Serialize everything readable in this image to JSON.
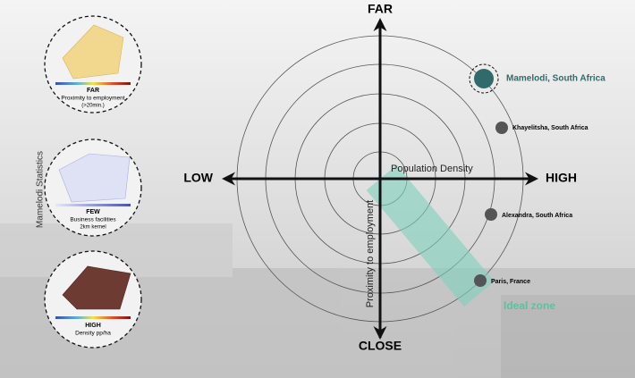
{
  "axes": {
    "top": "FAR",
    "bottom": "CLOSE",
    "left": "LOW",
    "right": "HIGH",
    "horizontal_label": "Population Density",
    "vertical_label": "Proximity to employment"
  },
  "places": [
    {
      "label": "Mamelodi, South Africa"
    },
    {
      "label": "Khayelitsha, South Africa"
    },
    {
      "label": "Alexandra, South Africa"
    },
    {
      "label": "Paris, France"
    }
  ],
  "ideal_zone": "Ideal zone",
  "sidebar": {
    "title": "Mamelodi Statistics",
    "panels": [
      {
        "level": "FAR",
        "caption": "Proximity to employment",
        "note": "(>20min.)"
      },
      {
        "level": "FEW",
        "caption": "Business facilities",
        "note": "2km kernel"
      },
      {
        "level": "HIGH",
        "caption": "Density pp/ha"
      }
    ]
  }
}
